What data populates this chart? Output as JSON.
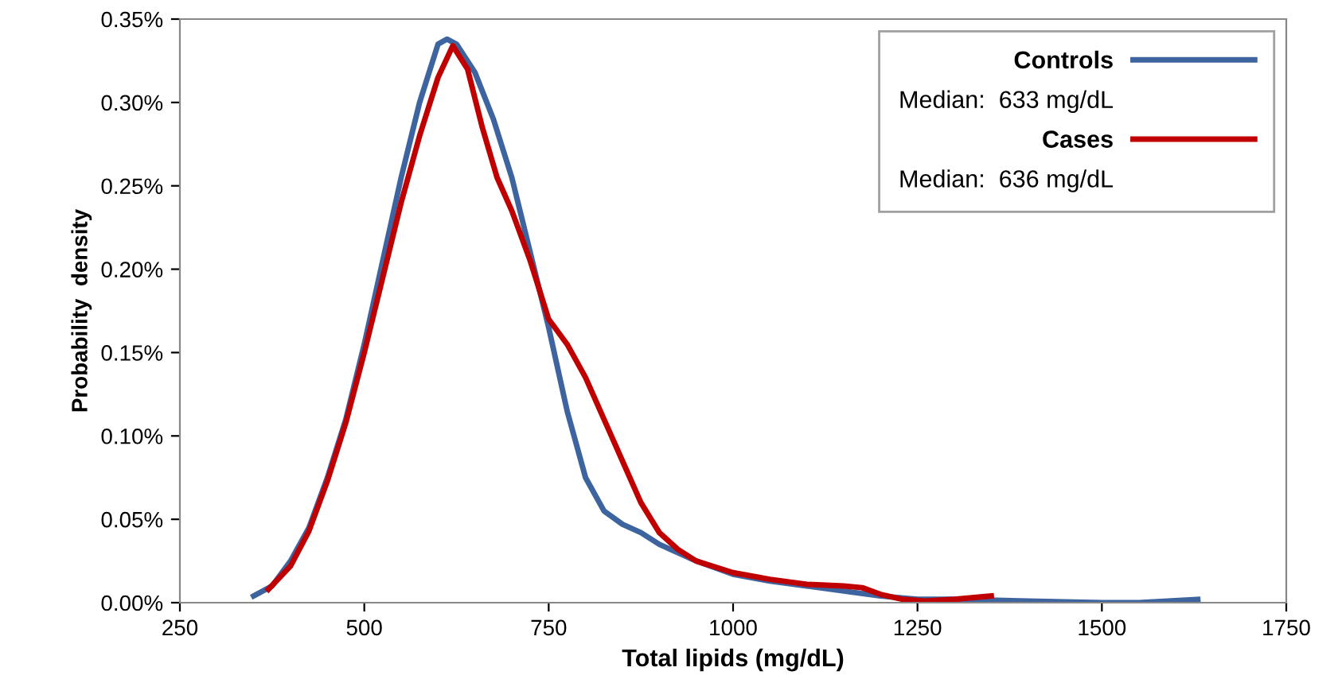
{
  "chart_data": {
    "type": "line",
    "xlabel": "Total lipids (mg/dL)",
    "ylabel": "Probability  density",
    "xlim": [
      250,
      1750
    ],
    "xticks": [
      250,
      500,
      750,
      1000,
      1250,
      1500,
      1750
    ],
    "ylim": [
      0,
      0.35
    ],
    "yticks": [
      {
        "value": 0,
        "label": "0.00%"
      },
      {
        "value": 0.05,
        "label": "0.05%"
      },
      {
        "value": 0.1,
        "label": "0.10%"
      },
      {
        "value": 0.15,
        "label": "0.15%"
      },
      {
        "value": 0.2,
        "label": "0.20%"
      },
      {
        "value": 0.25,
        "label": "0.25%"
      },
      {
        "value": 0.3,
        "label": "0.30%"
      },
      {
        "value": 0.35,
        "label": "0.35%"
      }
    ],
    "grid": false,
    "legend": "top right",
    "marker": "none",
    "line_style": "solid",
    "annotations": [
      "Median:  633 mg/dL",
      "Median:  636 mg/dL"
    ],
    "series": [
      {
        "name": "Controls",
        "color": "#3e64a0",
        "x": [
          350,
          375,
          400,
          425,
          450,
          475,
          500,
          525,
          550,
          575,
          600,
          612,
          625,
          650,
          675,
          700,
          725,
          750,
          775,
          800,
          825,
          850,
          875,
          900,
          925,
          950,
          1000,
          1050,
          1100,
          1150,
          1200,
          1250,
          1300,
          1400,
          1500,
          1550,
          1630
        ],
        "values": [
          0.004,
          0.01,
          0.025,
          0.045,
          0.075,
          0.11,
          0.155,
          0.205,
          0.255,
          0.3,
          0.335,
          0.338,
          0.335,
          0.318,
          0.29,
          0.255,
          0.21,
          0.165,
          0.115,
          0.075,
          0.055,
          0.047,
          0.042,
          0.035,
          0.03,
          0.025,
          0.017,
          0.013,
          0.01,
          0.007,
          0.004,
          0.002,
          0.002,
          0.001,
          0.0,
          0.0,
          0.002
        ]
      },
      {
        "name": "Cases",
        "color": "#c00000",
        "x": [
          370,
          400,
          425,
          450,
          475,
          500,
          525,
          550,
          575,
          600,
          620,
          640,
          660,
          680,
          700,
          725,
          750,
          775,
          800,
          825,
          850,
          875,
          900,
          925,
          950,
          1000,
          1050,
          1100,
          1150,
          1175,
          1200,
          1230,
          1260,
          1300,
          1350
        ],
        "values": [
          0.008,
          0.022,
          0.043,
          0.073,
          0.108,
          0.15,
          0.195,
          0.24,
          0.28,
          0.315,
          0.334,
          0.32,
          0.285,
          0.255,
          0.235,
          0.205,
          0.17,
          0.155,
          0.135,
          0.11,
          0.085,
          0.06,
          0.042,
          0.032,
          0.025,
          0.018,
          0.014,
          0.011,
          0.01,
          0.009,
          0.005,
          0.002,
          0.001,
          0.002,
          0.004
        ]
      }
    ]
  }
}
